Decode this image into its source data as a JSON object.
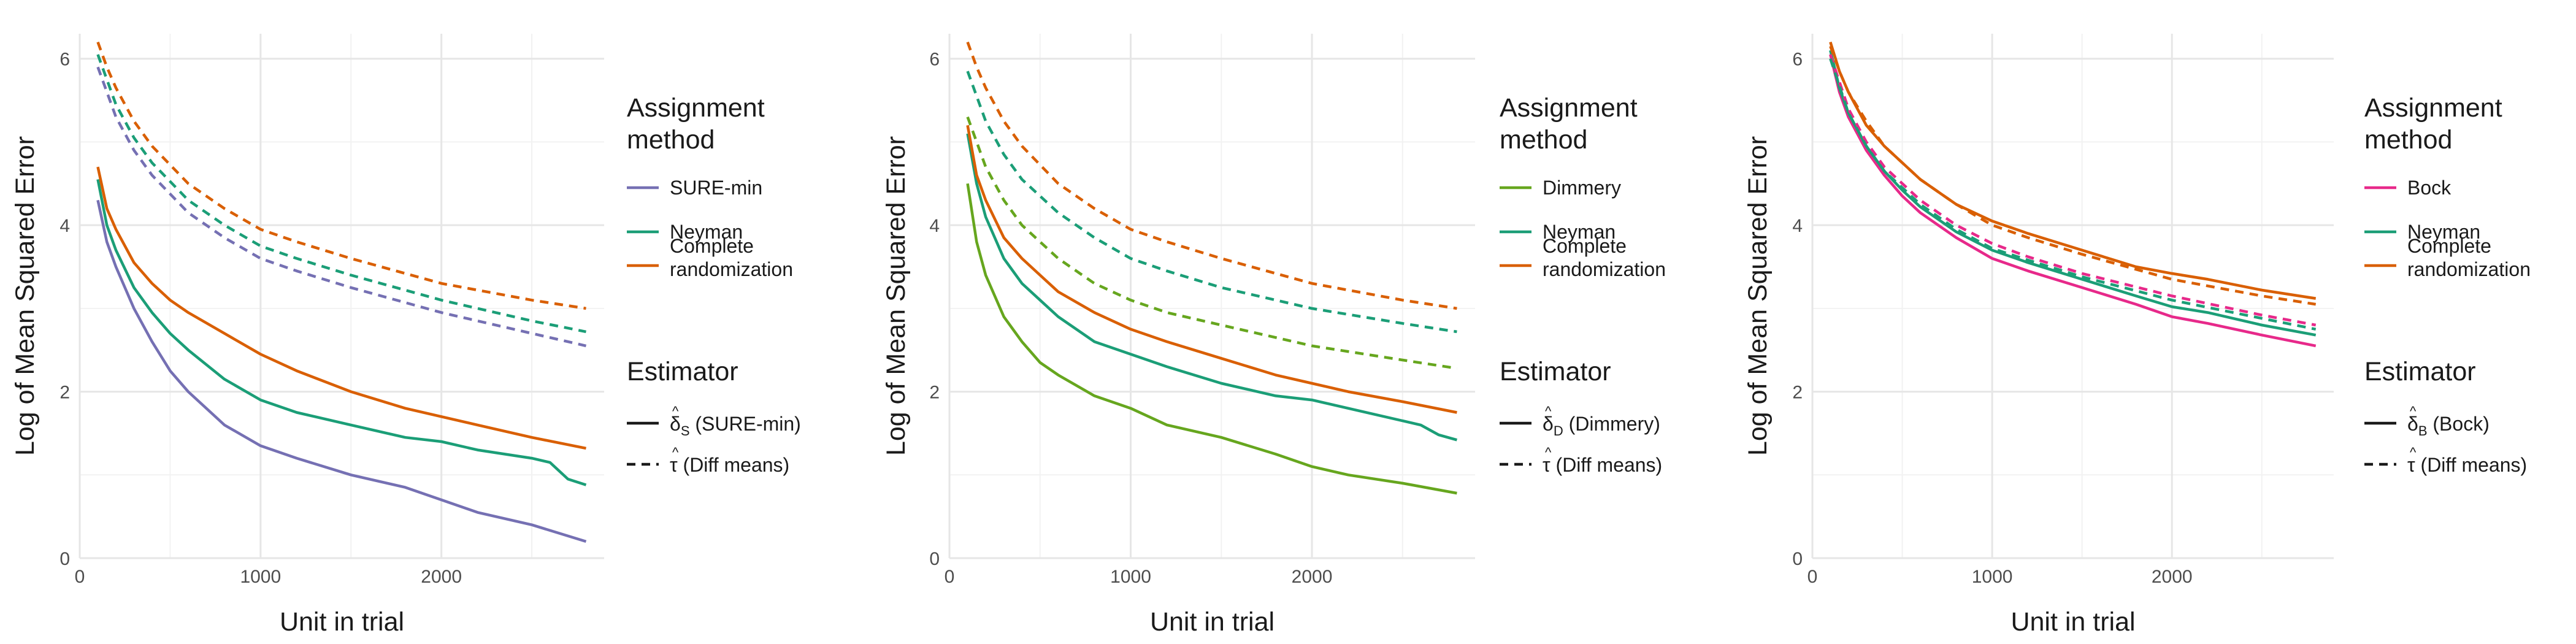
{
  "chart_data": [
    {
      "type": "line",
      "xlabel": "Unit in trial",
      "ylabel": "Log of Mean Squared Error",
      "xlim": [
        0,
        2900
      ],
      "ylim": [
        0,
        6.3
      ],
      "xticks": [
        0,
        1000,
        2000
      ],
      "yticks": [
        0,
        2,
        4,
        6
      ],
      "legend_position": "right",
      "legend": {
        "title_lines": [
          "Assignment",
          "method"
        ],
        "entries": [
          {
            "label_lines": [
              "SURE-min"
            ],
            "color": "#7570b3"
          },
          {
            "label_lines": [
              "Neyman"
            ],
            "color": "#1b9e77"
          },
          {
            "label_lines": [
              "Complete",
              "randomization"
            ],
            "color": "#d95f02"
          }
        ],
        "estimator_title": "Estimator",
        "estimators": [
          {
            "dash": "solid",
            "symbol": "δ",
            "subscript": "S",
            "label": "(SURE-min)"
          },
          {
            "dash": "dashed",
            "symbol": "τ",
            "subscript": "",
            "label": "(Diff means)"
          }
        ]
      },
      "series": [
        {
          "name": "SURE-min",
          "estimator": "solid",
          "color": "#7570b3",
          "x": [
            100,
            150,
            200,
            300,
            400,
            500,
            600,
            800,
            1000,
            1200,
            1500,
            1800,
            2000,
            2200,
            2500,
            2800
          ],
          "y": [
            4.3,
            3.8,
            3.5,
            3.0,
            2.6,
            2.25,
            2.0,
            1.6,
            1.35,
            1.2,
            1.0,
            0.85,
            0.7,
            0.55,
            0.4,
            0.2
          ]
        },
        {
          "name": "Neyman",
          "estimator": "solid",
          "color": "#1b9e77",
          "x": [
            100,
            150,
            200,
            300,
            400,
            500,
            600,
            800,
            1000,
            1200,
            1500,
            1800,
            2000,
            2200,
            2500,
            2600,
            2700,
            2800
          ],
          "y": [
            4.55,
            4.0,
            3.7,
            3.25,
            2.95,
            2.7,
            2.5,
            2.15,
            1.9,
            1.75,
            1.6,
            1.45,
            1.4,
            1.3,
            1.2,
            1.15,
            0.95,
            0.88
          ]
        },
        {
          "name": "Complete randomization",
          "estimator": "solid",
          "color": "#d95f02",
          "x": [
            100,
            150,
            200,
            300,
            400,
            500,
            600,
            800,
            1000,
            1200,
            1500,
            1800,
            2000,
            2200,
            2500,
            2800
          ],
          "y": [
            4.7,
            4.2,
            3.95,
            3.55,
            3.3,
            3.1,
            2.95,
            2.7,
            2.45,
            2.25,
            2.0,
            1.8,
            1.7,
            1.6,
            1.45,
            1.32
          ]
        },
        {
          "name": "SURE-min",
          "estimator": "dashed",
          "color": "#7570b3",
          "x": [
            100,
            200,
            300,
            400,
            600,
            800,
            1000,
            1200,
            1500,
            2000,
            2500,
            2800
          ],
          "y": [
            5.9,
            5.3,
            4.9,
            4.6,
            4.15,
            3.85,
            3.6,
            3.45,
            3.25,
            2.95,
            2.7,
            2.55
          ]
        },
        {
          "name": "Neyman",
          "estimator": "dashed",
          "color": "#1b9e77",
          "x": [
            100,
            200,
            300,
            400,
            600,
            800,
            1000,
            1200,
            1500,
            2000,
            2500,
            2800
          ],
          "y": [
            6.05,
            5.45,
            5.05,
            4.75,
            4.3,
            4.0,
            3.75,
            3.6,
            3.4,
            3.1,
            2.85,
            2.72
          ]
        },
        {
          "name": "Complete randomization",
          "estimator": "dashed",
          "color": "#d95f02",
          "x": [
            100,
            150,
            200,
            300,
            400,
            600,
            800,
            1000,
            1200,
            1500,
            2000,
            2500,
            2800
          ],
          "y": [
            6.2,
            5.9,
            5.65,
            5.25,
            4.95,
            4.5,
            4.2,
            3.95,
            3.8,
            3.6,
            3.3,
            3.1,
            3.0
          ]
        }
      ]
    },
    {
      "type": "line",
      "xlabel": "Unit in trial",
      "ylabel": "Log of Mean Squared Error",
      "xlim": [
        0,
        2900
      ],
      "ylim": [
        0,
        6.3
      ],
      "xticks": [
        0,
        1000,
        2000
      ],
      "yticks": [
        0,
        2,
        4,
        6
      ],
      "legend_position": "right",
      "legend": {
        "title_lines": [
          "Assignment",
          "method"
        ],
        "entries": [
          {
            "label_lines": [
              "Dimmery"
            ],
            "color": "#66a61e"
          },
          {
            "label_lines": [
              "Neyman"
            ],
            "color": "#1b9e77"
          },
          {
            "label_lines": [
              "Complete",
              "randomization"
            ],
            "color": "#d95f02"
          }
        ],
        "estimator_title": "Estimator",
        "estimators": [
          {
            "dash": "solid",
            "symbol": "δ",
            "subscript": "D",
            "label": "(Dimmery)"
          },
          {
            "dash": "dashed",
            "symbol": "τ",
            "subscript": "",
            "label": "(Diff means)"
          }
        ]
      },
      "series": [
        {
          "name": "Dimmery",
          "estimator": "solid",
          "color": "#66a61e",
          "x": [
            100,
            150,
            200,
            300,
            400,
            500,
            600,
            800,
            1000,
            1200,
            1500,
            1800,
            2000,
            2200,
            2500,
            2800
          ],
          "y": [
            4.5,
            3.8,
            3.4,
            2.9,
            2.6,
            2.35,
            2.2,
            1.95,
            1.8,
            1.6,
            1.45,
            1.25,
            1.1,
            1.0,
            0.9,
            0.78
          ]
        },
        {
          "name": "Neyman",
          "estimator": "solid",
          "color": "#1b9e77",
          "x": [
            100,
            150,
            200,
            300,
            400,
            500,
            600,
            800,
            1000,
            1200,
            1500,
            1800,
            2000,
            2200,
            2500,
            2600,
            2700,
            2800
          ],
          "y": [
            5.1,
            4.5,
            4.1,
            3.6,
            3.3,
            3.1,
            2.9,
            2.6,
            2.45,
            2.3,
            2.1,
            1.95,
            1.9,
            1.8,
            1.65,
            1.6,
            1.48,
            1.42
          ]
        },
        {
          "name": "Complete randomization",
          "estimator": "solid",
          "color": "#d95f02",
          "x": [
            100,
            150,
            200,
            300,
            400,
            500,
            600,
            800,
            1000,
            1200,
            1500,
            1800,
            2000,
            2200,
            2500,
            2800
          ],
          "y": [
            5.2,
            4.6,
            4.3,
            3.85,
            3.6,
            3.4,
            3.2,
            2.95,
            2.75,
            2.6,
            2.4,
            2.2,
            2.1,
            2.0,
            1.88,
            1.75
          ]
        },
        {
          "name": "Dimmery",
          "estimator": "dashed",
          "color": "#66a61e",
          "x": [
            100,
            200,
            300,
            400,
            600,
            800,
            1000,
            1200,
            1500,
            2000,
            2500,
            2800
          ],
          "y": [
            5.3,
            4.7,
            4.3,
            4.0,
            3.6,
            3.3,
            3.1,
            2.95,
            2.8,
            2.55,
            2.38,
            2.28
          ]
        },
        {
          "name": "Neyman",
          "estimator": "dashed",
          "color": "#1b9e77",
          "x": [
            100,
            200,
            300,
            400,
            600,
            800,
            1000,
            1200,
            1500,
            2000,
            2500,
            2800
          ],
          "y": [
            5.85,
            5.25,
            4.85,
            4.55,
            4.15,
            3.85,
            3.6,
            3.45,
            3.25,
            3.0,
            2.82,
            2.72
          ]
        },
        {
          "name": "Complete randomization",
          "estimator": "dashed",
          "color": "#d95f02",
          "x": [
            100,
            150,
            200,
            300,
            400,
            600,
            800,
            1000,
            1200,
            1500,
            2000,
            2500,
            2800
          ],
          "y": [
            6.2,
            5.9,
            5.65,
            5.25,
            4.95,
            4.5,
            4.2,
            3.95,
            3.8,
            3.6,
            3.3,
            3.1,
            3.0
          ]
        }
      ]
    },
    {
      "type": "line",
      "xlabel": "Unit in trial",
      "ylabel": "Log of Mean Squared Error",
      "xlim": [
        0,
        2900
      ],
      "ylim": [
        0,
        6.3
      ],
      "xticks": [
        0,
        1000,
        2000
      ],
      "yticks": [
        0,
        2,
        4,
        6
      ],
      "legend_position": "right",
      "legend": {
        "title_lines": [
          "Assignment",
          "method"
        ],
        "entries": [
          {
            "label_lines": [
              "Bock"
            ],
            "color": "#e7298a"
          },
          {
            "label_lines": [
              "Neyman"
            ],
            "color": "#1b9e77"
          },
          {
            "label_lines": [
              "Complete",
              "randomization"
            ],
            "color": "#d95f02"
          }
        ],
        "estimator_title": "Estimator",
        "estimators": [
          {
            "dash": "solid",
            "symbol": "δ",
            "subscript": "B",
            "label": "(Bock)"
          },
          {
            "dash": "dashed",
            "symbol": "τ",
            "subscript": "",
            "label": "(Diff means)"
          }
        ]
      },
      "series": [
        {
          "name": "Bock",
          "estimator": "solid",
          "color": "#e7298a",
          "x": [
            100,
            150,
            200,
            300,
            400,
            500,
            600,
            800,
            1000,
            1200,
            1500,
            1800,
            2000,
            2200,
            2500,
            2800
          ],
          "y": [
            6.05,
            5.6,
            5.3,
            4.9,
            4.6,
            4.35,
            4.15,
            3.85,
            3.6,
            3.45,
            3.25,
            3.05,
            2.9,
            2.82,
            2.68,
            2.55
          ]
        },
        {
          "name": "Neyman",
          "estimator": "solid",
          "color": "#1b9e77",
          "x": [
            100,
            150,
            200,
            300,
            400,
            500,
            600,
            800,
            1000,
            1200,
            1500,
            1800,
            2000,
            2200,
            2500,
            2800
          ],
          "y": [
            6.1,
            5.65,
            5.35,
            4.95,
            4.65,
            4.42,
            4.22,
            3.92,
            3.7,
            3.55,
            3.35,
            3.15,
            3.02,
            2.95,
            2.8,
            2.68
          ]
        },
        {
          "name": "Complete randomization",
          "estimator": "solid",
          "color": "#d95f02",
          "x": [
            100,
            150,
            200,
            300,
            400,
            500,
            600,
            800,
            1000,
            1200,
            1500,
            1800,
            2000,
            2200,
            2500,
            2800
          ],
          "y": [
            6.2,
            5.85,
            5.6,
            5.2,
            4.95,
            4.75,
            4.55,
            4.25,
            4.05,
            3.9,
            3.7,
            3.5,
            3.42,
            3.35,
            3.22,
            3.12
          ]
        },
        {
          "name": "Bock",
          "estimator": "dashed",
          "color": "#e7298a",
          "x": [
            100,
            200,
            300,
            400,
            600,
            800,
            1000,
            1200,
            1500,
            2000,
            2500,
            2800
          ],
          "y": [
            6.05,
            5.4,
            5.0,
            4.7,
            4.3,
            4.0,
            3.78,
            3.62,
            3.42,
            3.15,
            2.92,
            2.8
          ]
        },
        {
          "name": "Neyman",
          "estimator": "dashed",
          "color": "#1b9e77",
          "x": [
            100,
            200,
            300,
            400,
            600,
            800,
            1000,
            1200,
            1500,
            2000,
            2500,
            2800
          ],
          "y": [
            6.0,
            5.35,
            4.95,
            4.65,
            4.25,
            3.95,
            3.72,
            3.58,
            3.38,
            3.1,
            2.88,
            2.75
          ]
        },
        {
          "name": "Complete randomization",
          "estimator": "dashed",
          "color": "#d95f02",
          "x": [
            100,
            150,
            200,
            300,
            400,
            600,
            800,
            1000,
            1200,
            1500,
            2000,
            2500,
            2800
          ],
          "y": [
            6.15,
            5.85,
            5.6,
            5.25,
            4.95,
            4.55,
            4.25,
            4.0,
            3.85,
            3.65,
            3.35,
            3.15,
            3.05
          ]
        }
      ]
    }
  ]
}
